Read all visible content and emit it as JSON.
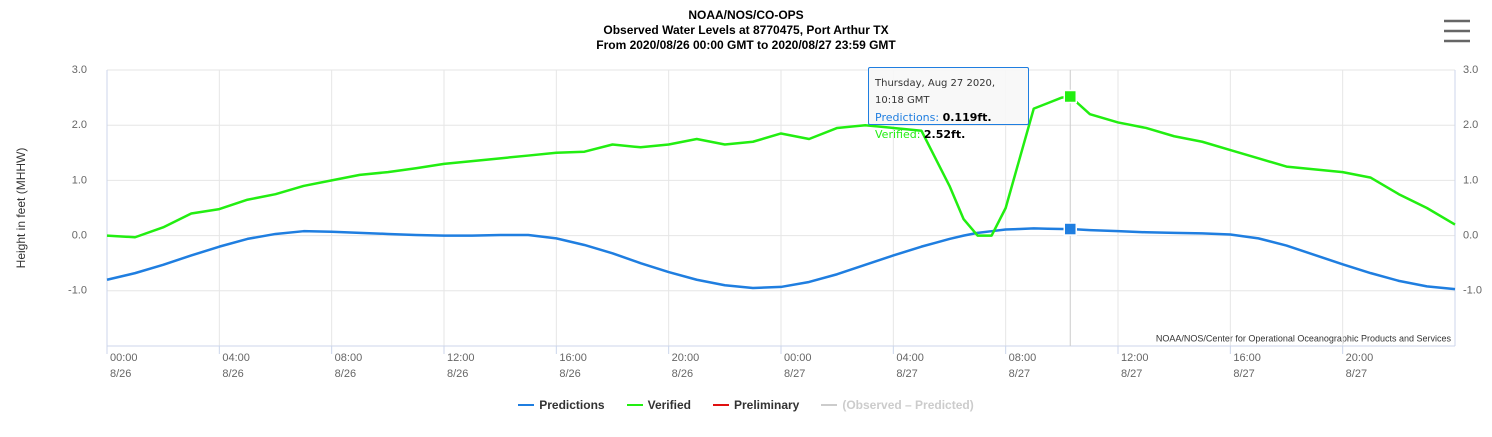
{
  "chart_data": {
    "type": "line",
    "title": "NOAA/NOS/CO-OPS",
    "subtitle": "Observed Water Levels at 8770475, Port Arthur TX",
    "subtitle2": "From 2020/08/26 00:00 GMT to 2020/08/27 23:59 GMT",
    "ylabel": "Height in feet (MHHW)",
    "credits": "NOAA/NOS/Center for Operational Oceanographic Products and Services",
    "grid": true,
    "xlim": [
      0,
      48
    ],
    "xticks": [
      {
        "value": 0,
        "label": "00:00\n8/26"
      },
      {
        "value": 4,
        "label": "04:00\n8/26"
      },
      {
        "value": 8,
        "label": "08:00\n8/26"
      },
      {
        "value": 12,
        "label": "12:00\n8/26"
      },
      {
        "value": 16,
        "label": "16:00\n8/26"
      },
      {
        "value": 20,
        "label": "20:00\n8/26"
      },
      {
        "value": 24,
        "label": "00:00\n8/27"
      },
      {
        "value": 28,
        "label": "04:00\n8/27"
      },
      {
        "value": 32,
        "label": "08:00\n8/27"
      },
      {
        "value": 36,
        "label": "12:00\n8/27"
      },
      {
        "value": 40,
        "label": "16:00\n8/27"
      },
      {
        "value": 44,
        "label": "20:00\n8/27"
      }
    ],
    "ylim": [
      -2,
      3
    ],
    "yticks": [
      {
        "value": -1,
        "label": "-1.0"
      },
      {
        "value": 0,
        "label": "0.0"
      },
      {
        "value": 1,
        "label": "1.0"
      },
      {
        "value": 2,
        "label": "2.0"
      },
      {
        "value": 3,
        "label": "3.0"
      }
    ],
    "y2lim": [
      -2,
      3
    ],
    "y2ticks": [
      {
        "value": -1,
        "label": "-1.0"
      },
      {
        "value": 0,
        "label": "0.0"
      },
      {
        "value": 1,
        "label": "1.0"
      },
      {
        "value": 2,
        "label": "2.0"
      },
      {
        "value": 3,
        "label": "3.0"
      }
    ],
    "x": [
      0,
      1,
      2,
      3,
      4,
      5,
      6,
      7,
      8,
      9,
      10,
      11,
      12,
      13,
      14,
      15,
      16,
      17,
      18,
      19,
      20,
      21,
      22,
      23,
      24,
      25,
      26,
      27,
      28,
      29,
      29.5,
      30,
      30.5,
      31,
      31.5,
      32,
      32.5,
      33,
      33.5,
      34,
      34.3,
      35,
      36,
      37,
      38,
      39,
      40,
      41,
      42,
      43,
      44,
      45,
      46,
      47,
      48
    ],
    "series": [
      {
        "name": "Predictions",
        "color": "#1f7ee0",
        "values": [
          -0.8,
          -0.68,
          -0.53,
          -0.36,
          -0.2,
          -0.06,
          0.03,
          0.08,
          0.07,
          0.05,
          0.03,
          0.01,
          0.0,
          0.0,
          0.01,
          0.01,
          -0.05,
          -0.17,
          -0.32,
          -0.5,
          -0.66,
          -0.8,
          -0.9,
          -0.95,
          -0.93,
          -0.84,
          -0.7,
          -0.53,
          -0.36,
          -0.2,
          -0.13,
          -0.06,
          0.0,
          0.05,
          0.08,
          0.11,
          0.12,
          0.13,
          0.125,
          0.12,
          0.119,
          0.1,
          0.08,
          0.06,
          0.05,
          0.04,
          0.02,
          -0.05,
          -0.18,
          -0.35,
          -0.52,
          -0.68,
          -0.82,
          -0.92,
          -0.97
        ]
      },
      {
        "name": "Verified",
        "color": "#22ee11",
        "values": [
          0.0,
          -0.03,
          0.15,
          0.4,
          0.48,
          0.65,
          0.75,
          0.9,
          1.0,
          1.1,
          1.15,
          1.22,
          1.3,
          1.35,
          1.4,
          1.45,
          1.5,
          1.52,
          1.65,
          1.6,
          1.65,
          1.75,
          1.65,
          1.7,
          1.85,
          1.75,
          1.95,
          2.0,
          1.95,
          1.9,
          1.4,
          0.9,
          0.3,
          0.0,
          0.0,
          0.5,
          1.4,
          2.3,
          2.4,
          2.5,
          2.52,
          2.2,
          2.05,
          1.95,
          1.8,
          1.7,
          1.55,
          1.4,
          1.25,
          1.2,
          1.15,
          1.05,
          0.75,
          0.5,
          0.2
        ]
      }
    ],
    "legend_extra": [
      {
        "name": "Preliminary",
        "color": "#e01010"
      },
      {
        "name": "(Observed – Predicted)",
        "color": "#cccccc",
        "disabled": true
      }
    ],
    "tooltip": {
      "header": "Thursday, Aug 27 2020, 10:18 GMT",
      "x": 34.3,
      "labels": [
        "Predictions:",
        "Verified:"
      ],
      "values": [
        0.119,
        2.52
      ],
      "value_labels": [
        "0.119ft.",
        "2.52ft."
      ]
    }
  }
}
